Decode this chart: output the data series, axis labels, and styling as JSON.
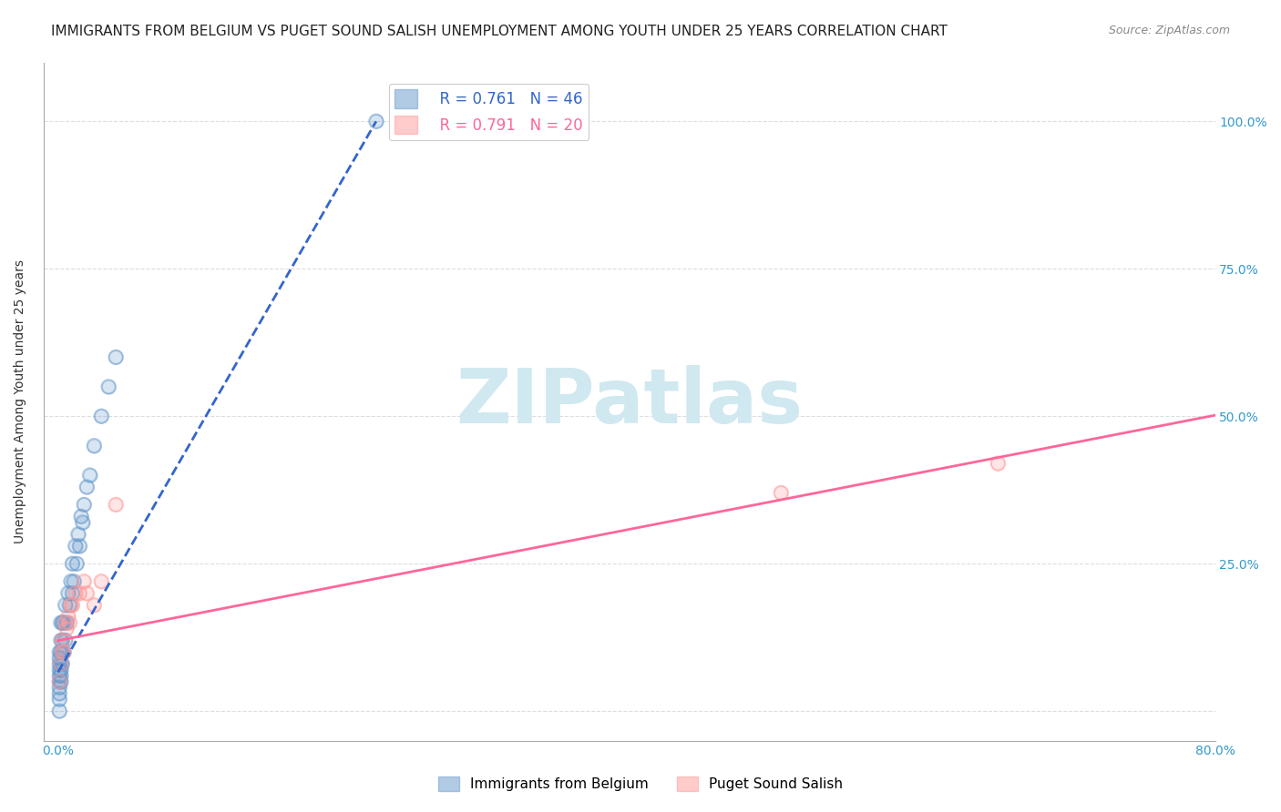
{
  "title": "IMMIGRANTS FROM BELGIUM VS PUGET SOUND SALISH UNEMPLOYMENT AMONG YOUTH UNDER 25 YEARS CORRELATION CHART",
  "source": "Source: ZipAtlas.com",
  "xlabel": "",
  "ylabel": "Unemployment Among Youth under 25 years",
  "xlim": [
    0.0,
    0.8
  ],
  "ylim": [
    -0.05,
    1.1
  ],
  "xticks": [
    0.0,
    0.1,
    0.2,
    0.3,
    0.4,
    0.5,
    0.6,
    0.7,
    0.8
  ],
  "xticklabels": [
    "0.0%",
    "",
    "",
    "",
    "",
    "",
    "",
    "",
    "80.0%"
  ],
  "ytick_positions": [
    0.0,
    0.25,
    0.5,
    0.75,
    1.0
  ],
  "ytick_labels": [
    "",
    "25.0%",
    "50.0%",
    "75.0%",
    "100.0%"
  ],
  "blue_R": 0.761,
  "blue_N": 46,
  "pink_R": 0.791,
  "pink_N": 20,
  "blue_scatter": {
    "x": [
      0.001,
      0.001,
      0.001,
      0.001,
      0.001,
      0.001,
      0.001,
      0.001,
      0.001,
      0.001,
      0.002,
      0.002,
      0.002,
      0.002,
      0.002,
      0.002,
      0.002,
      0.003,
      0.003,
      0.003,
      0.003,
      0.004,
      0.004,
      0.005,
      0.005,
      0.006,
      0.007,
      0.008,
      0.009,
      0.01,
      0.01,
      0.011,
      0.012,
      0.013,
      0.014,
      0.015,
      0.016,
      0.017,
      0.018,
      0.02,
      0.022,
      0.025,
      0.03,
      0.035,
      0.04,
      0.22
    ],
    "y": [
      0.0,
      0.02,
      0.03,
      0.04,
      0.05,
      0.06,
      0.07,
      0.08,
      0.09,
      0.1,
      0.05,
      0.06,
      0.07,
      0.08,
      0.1,
      0.12,
      0.15,
      0.08,
      0.1,
      0.12,
      0.15,
      0.1,
      0.15,
      0.12,
      0.18,
      0.15,
      0.2,
      0.18,
      0.22,
      0.2,
      0.25,
      0.22,
      0.28,
      0.25,
      0.3,
      0.28,
      0.33,
      0.32,
      0.35,
      0.38,
      0.4,
      0.45,
      0.5,
      0.55,
      0.6,
      1.0
    ]
  },
  "pink_scatter": {
    "x": [
      0.001,
      0.002,
      0.003,
      0.003,
      0.004,
      0.005,
      0.006,
      0.007,
      0.008,
      0.009,
      0.01,
      0.012,
      0.015,
      0.018,
      0.02,
      0.025,
      0.03,
      0.04,
      0.5,
      0.65
    ],
    "y": [
      0.05,
      0.08,
      0.1,
      0.12,
      0.1,
      0.15,
      0.14,
      0.16,
      0.15,
      0.18,
      0.18,
      0.2,
      0.2,
      0.22,
      0.2,
      0.18,
      0.22,
      0.35,
      0.37,
      0.42
    ]
  },
  "blue_color": "#6699CC",
  "pink_color": "#FF9999",
  "blue_line_color": "#3366CC",
  "pink_line_color": "#FF6699",
  "watermark_text": "ZIPatlas",
  "watermark_color": "#d0e8f0",
  "background_color": "#ffffff",
  "grid_color": "#dddddd",
  "title_fontsize": 11,
  "axis_label_fontsize": 10,
  "tick_fontsize": 10,
  "legend_fontsize": 12,
  "source_fontsize": 9
}
